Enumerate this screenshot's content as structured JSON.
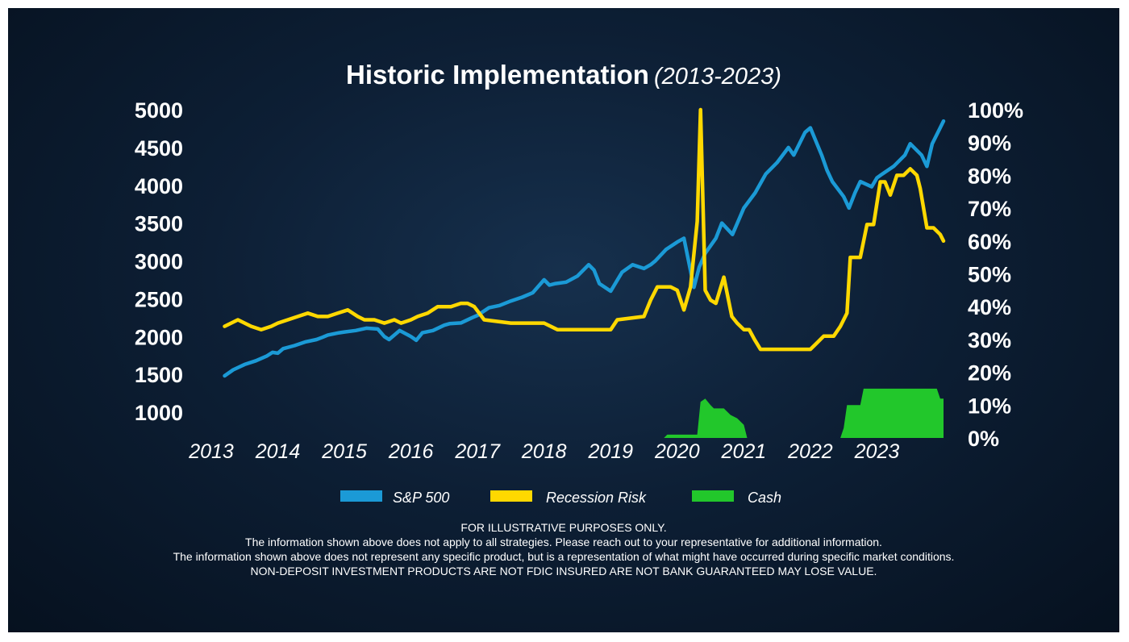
{
  "chart_data": {
    "type": "line",
    "title": "Historic Implementation",
    "subtitle": "(2013-2023)",
    "x_ticks": [
      "2013",
      "2014",
      "2015",
      "2016",
      "2017",
      "2018",
      "2019",
      "2020",
      "2021",
      "2022",
      "2023"
    ],
    "y_left_ticks": [
      "5000",
      "4500",
      "4000",
      "3500",
      "3000",
      "2500",
      "2000",
      "1500",
      "1000"
    ],
    "y_right_ticks": [
      "100%",
      "90%",
      "80%",
      "70%",
      "60%",
      "50%",
      "40%",
      "30%",
      "20%",
      "10%",
      "0%"
    ],
    "ylim_left": [
      1000,
      5000
    ],
    "ylim_right": [
      0,
      100
    ],
    "xlim": [
      2013,
      2024
    ],
    "legend_position": "bottom",
    "colors": {
      "sp500": "#1b9ad6",
      "recession": "#ffd800",
      "cash": "#22c72b"
    },
    "series": [
      {
        "name": "S&P 500",
        "axis": "left",
        "x": [
          2013.2,
          2013.33,
          2013.5,
          2013.67,
          2013.83,
          2013.92,
          2014.0,
          2014.08,
          2014.25,
          2014.42,
          2014.58,
          2014.67,
          2014.75,
          2014.92,
          2015.0,
          2015.17,
          2015.33,
          2015.5,
          2015.6,
          2015.67,
          2015.83,
          2016.0,
          2016.08,
          2016.17,
          2016.33,
          2016.5,
          2016.58,
          2016.75,
          2016.92,
          2017.0,
          2017.17,
          2017.33,
          2017.5,
          2017.67,
          2017.83,
          2018.0,
          2018.08,
          2018.17,
          2018.33,
          2018.5,
          2018.67,
          2018.75,
          2018.83,
          2019.0,
          2019.17,
          2019.33,
          2019.5,
          2019.6,
          2019.67,
          2019.83,
          2020.0,
          2020.1,
          2020.25,
          2020.33,
          2020.42,
          2020.58,
          2020.67,
          2020.83,
          2021.0,
          2021.17,
          2021.33,
          2021.5,
          2021.67,
          2021.75,
          2021.92,
          2022.0,
          2022.17,
          2022.25,
          2022.33,
          2022.5,
          2022.58,
          2022.67,
          2022.75,
          2022.92,
          2023.0,
          2023.08,
          2023.25,
          2023.42,
          2023.5,
          2023.67,
          2023.75,
          2023.83,
          2024.0
        ],
        "values": [
          1480,
          1560,
          1630,
          1680,
          1740,
          1790,
          1780,
          1840,
          1880,
          1930,
          1960,
          1990,
          2020,
          2050,
          2060,
          2080,
          2110,
          2100,
          2000,
          1960,
          2080,
          2000,
          1950,
          2050,
          2080,
          2150,
          2170,
          2180,
          2250,
          2280,
          2380,
          2410,
          2470,
          2520,
          2580,
          2750,
          2680,
          2700,
          2720,
          2800,
          2950,
          2880,
          2700,
          2600,
          2850,
          2950,
          2900,
          2950,
          3000,
          3150,
          3250,
          3300,
          2650,
          2920,
          3100,
          3300,
          3500,
          3350,
          3700,
          3900,
          4150,
          4300,
          4500,
          4400,
          4700,
          4760,
          4400,
          4200,
          4050,
          3850,
          3700,
          3900,
          4050,
          3980,
          4100,
          4150,
          4250,
          4400,
          4550,
          4400,
          4250,
          4550,
          4850
        ]
      },
      {
        "name": "Recession Risk",
        "axis": "right",
        "x": [
          2013.2,
          2013.4,
          2013.6,
          2013.75,
          2013.9,
          2014.0,
          2014.15,
          2014.3,
          2014.45,
          2014.6,
          2014.75,
          2014.9,
          2015.05,
          2015.2,
          2015.3,
          2015.45,
          2015.6,
          2015.75,
          2015.85,
          2016.0,
          2016.1,
          2016.25,
          2016.4,
          2016.6,
          2016.75,
          2016.85,
          2016.95,
          2017.1,
          2017.5,
          2018.0,
          2018.2,
          2018.4,
          2018.8,
          2019.0,
          2019.1,
          2019.5,
          2019.6,
          2019.7,
          2019.9,
          2020.0,
          2020.1,
          2020.2,
          2020.3,
          2020.35,
          2020.42,
          2020.5,
          2020.58,
          2020.7,
          2020.82,
          2020.9,
          2021.0,
          2021.08,
          2021.16,
          2021.25,
          2021.3,
          2021.5,
          2022.0,
          2022.1,
          2022.2,
          2022.35,
          2022.45,
          2022.55,
          2022.6,
          2022.75,
          2022.85,
          2022.95,
          2023.05,
          2023.12,
          2023.2,
          2023.3,
          2023.4,
          2023.5,
          2023.6,
          2023.65,
          2023.75,
          2023.85,
          2023.95,
          2024.0
        ],
        "values": [
          34,
          36,
          34,
          33,
          34,
          35,
          36,
          37,
          38,
          37,
          37,
          38,
          39,
          37,
          36,
          36,
          35,
          36,
          35,
          36,
          37,
          38,
          40,
          40,
          41,
          41,
          40,
          36,
          35,
          35,
          33,
          33,
          33,
          33,
          36,
          37,
          42,
          46,
          46,
          45,
          39,
          46,
          66,
          100,
          45,
          42,
          41,
          49,
          37,
          35,
          33,
          33,
          30,
          27,
          27,
          27,
          27,
          29,
          31,
          31,
          34,
          38,
          55,
          55,
          65,
          65,
          78,
          78,
          74,
          80,
          80,
          82,
          80,
          76,
          64,
          64,
          62,
          60
        ]
      },
      {
        "name": "Cash",
        "axis": "right",
        "type": "area",
        "x": [
          2019.8,
          2019.85,
          2020.3,
          2020.35,
          2020.42,
          2020.5,
          2020.55,
          2020.7,
          2020.8,
          2020.9,
          2021.0,
          2021.05,
          2022.45,
          2022.5,
          2022.55,
          2022.75,
          2022.8,
          2023.0,
          2023.1,
          2023.9,
          2023.95,
          2024.0,
          2024.0
        ],
        "values": [
          0,
          1,
          1,
          11,
          12,
          10,
          9,
          9,
          7,
          6,
          4,
          0,
          0,
          3,
          10,
          10,
          15,
          15,
          15,
          15,
          12,
          12,
          0
        ]
      }
    ]
  },
  "footer": {
    "line1": "FOR ILLUSTRATIVE PURPOSES ONLY.",
    "line2": "The information shown above does not apply to all strategies. Please reach out to your representative for additional information.",
    "line3": "The information shown above does not represent any specific product, but is a representation of what might have occurred during specific market conditions.",
    "line4": "NON-DEPOSIT INVESTMENT PRODUCTS ARE NOT FDIC INSURED ARE NOT BANK GUARANTEED MAY LOSE VALUE."
  }
}
